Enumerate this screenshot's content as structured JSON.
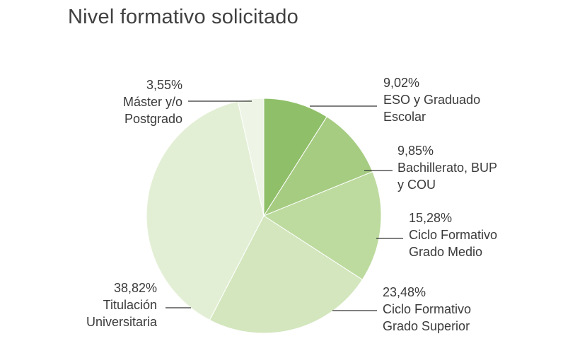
{
  "title": "Nivel formativo solicitado",
  "chart_data": {
    "type": "pie",
    "title": "Nivel formativo solicitado",
    "slices": [
      {
        "label_lines": [
          "ESO y Graduado",
          "Escolar"
        ],
        "pct_text": "9,02%",
        "value": 9.02,
        "color": "#8fbf68"
      },
      {
        "label_lines": [
          "Bachillerato, BUP",
          "y COU"
        ],
        "pct_text": "9,85%",
        "value": 9.85,
        "color": "#a6cc82"
      },
      {
        "label_lines": [
          "Ciclo Formativo",
          "Grado Medio"
        ],
        "pct_text": "15,28%",
        "value": 15.28,
        "color": "#bddb9f"
      },
      {
        "label_lines": [
          "Ciclo Formativo",
          "Grado Superior"
        ],
        "pct_text": "23,48%",
        "value": 23.48,
        "color": "#d3e6bd"
      },
      {
        "label_lines": [
          "Titulación",
          "Universitaria"
        ],
        "pct_text": "38,82%",
        "value": 38.82,
        "color": "#e3efd5"
      },
      {
        "label_lines": [
          "Máster y/o",
          "Postgrado"
        ],
        "pct_text": "3,55%",
        "value": 3.55,
        "color": "#eef5e6"
      }
    ]
  }
}
